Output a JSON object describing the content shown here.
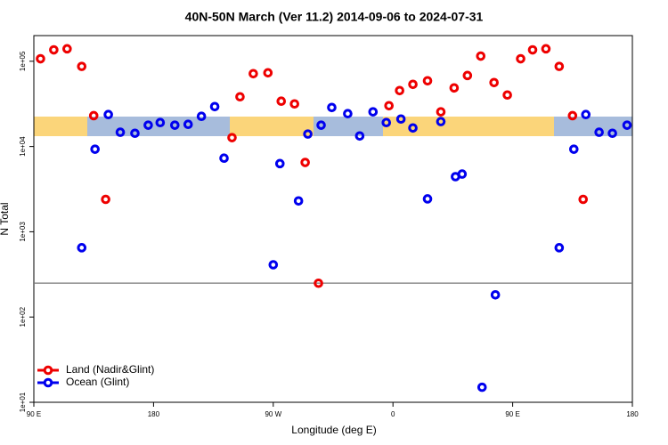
{
  "chart_data": {
    "type": "scatter",
    "title": "40N-50N March (Ver 11.2)   2014-09-06 to 2024-07-31",
    "x_label": "Longitude (deg E)",
    "y_label": "N Total",
    "xlim": [
      90,
      540
    ],
    "xticks": [
      {
        "value": 90,
        "label": "90 E"
      },
      180,
      {
        "value": 270,
        "label": "90 W"
      },
      {
        "value": 360,
        "label": "0"
      },
      {
        "value": 450,
        "label": "90 E"
      },
      {
        "value": 540,
        "label": "180"
      }
    ],
    "ylim": [
      10,
      200000
    ],
    "log_y": true,
    "yticks": [
      {
        "value": 10,
        "label": "1e+01"
      },
      {
        "value": 100,
        "label": "1e+02"
      },
      {
        "value": 1000,
        "label": "1e+03"
      },
      {
        "value": 10000,
        "label": "1e+04"
      },
      {
        "value": 100000,
        "label": "1e+05"
      }
    ],
    "hline": 250,
    "legend": "bottom left",
    "series": [
      {
        "name": "Land (Nadir&Glint)",
        "color": "#ee0000",
        "x": [
          95,
          105,
          115,
          126,
          135,
          144,
          239,
          245,
          255,
          266,
          276,
          286,
          294,
          304,
          357,
          365,
          375,
          386,
          396,
          406,
          416,
          426,
          436,
          446,
          456,
          465,
          475,
          485,
          495,
          503
        ],
        "values": [
          107000,
          136000,
          140000,
          87000,
          23000,
          2400,
          12700,
          38300,
          71500,
          73200,
          34000,
          31600,
          6500,
          249,
          30100,
          45300,
          53600,
          59000,
          25500,
          48700,
          68100,
          115000,
          56200,
          40200,
          107000,
          136000,
          140000,
          87000,
          23000,
          2400
        ]
      },
      {
        "name": "Ocean (Glint)",
        "color": "#0000ee",
        "x": [
          126,
          136,
          146,
          155,
          166,
          176,
          185,
          196,
          206,
          216,
          226,
          233,
          270,
          275,
          289,
          296,
          306,
          314,
          326,
          335,
          345,
          355,
          366,
          375,
          386,
          396,
          407,
          412,
          427,
          437,
          485,
          496,
          505,
          515,
          525,
          536
        ],
        "values": [
          650,
          9300,
          23700,
          14700,
          14300,
          17800,
          19100,
          17800,
          18200,
          22600,
          29400,
          7300,
          410,
          6300,
          2300,
          14000,
          17800,
          28700,
          24300,
          13300,
          25500,
          19100,
          21000,
          16500,
          2430,
          19600,
          4430,
          4750,
          15,
          182,
          650,
          9300,
          23700,
          14700,
          14300,
          17800
        ]
      }
    ]
  }
}
